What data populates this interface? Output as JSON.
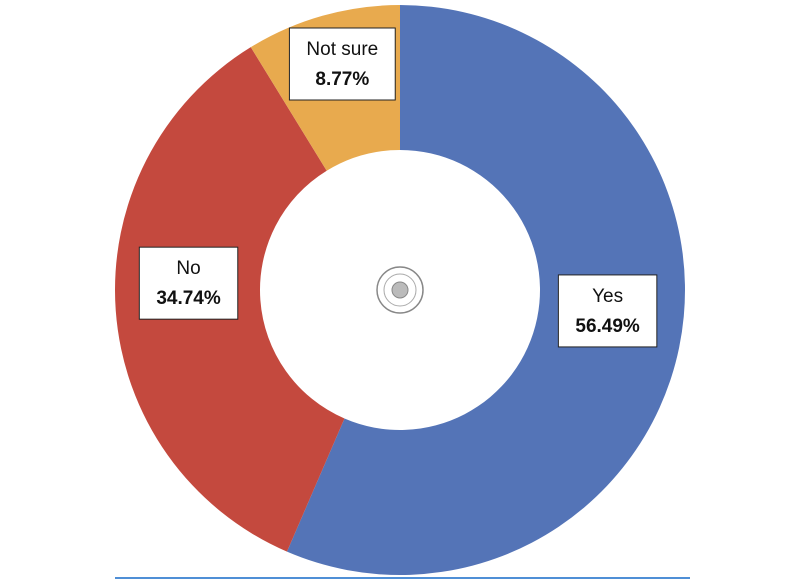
{
  "chart_data": {
    "type": "donut",
    "categories": [
      "Yes",
      "No",
      "Not sure"
    ],
    "values": [
      56.49,
      34.74,
      8.77
    ],
    "value_labels": [
      "56.49%",
      "34.74%",
      "8.77%"
    ],
    "colors": [
      "#5474b7",
      "#c4493e",
      "#e8aa4e"
    ]
  }
}
